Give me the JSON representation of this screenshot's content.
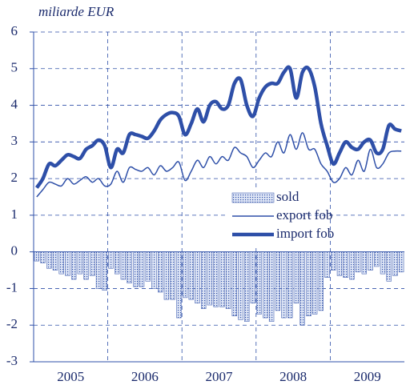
{
  "chart_data": {
    "type": "line_bar",
    "title": "miliarde EUR",
    "categories": [
      null,
      null,
      null,
      null,
      null,
      null,
      "2005",
      null,
      null,
      null,
      null,
      null,
      null,
      null,
      null,
      null,
      null,
      null,
      "2006",
      null,
      null,
      null,
      null,
      null,
      null,
      null,
      null,
      null,
      null,
      null,
      "2007",
      null,
      null,
      null,
      null,
      null,
      null,
      null,
      null,
      null,
      null,
      null,
      "2008",
      null,
      null,
      null,
      null,
      null,
      null,
      null,
      null,
      null,
      null,
      null,
      "2009",
      null,
      null,
      null,
      null,
      null
    ],
    "series": [
      {
        "name": "sold",
        "kind": "bar",
        "color": "#2e4fa8",
        "values": [
          -0.25,
          -0.3,
          -0.45,
          -0.5,
          -0.6,
          -0.65,
          -0.75,
          -0.6,
          -0.75,
          -0.65,
          -1.0,
          -1.05,
          -0.45,
          -0.6,
          -0.75,
          -0.85,
          -0.95,
          -0.95,
          -0.8,
          -1.0,
          -1.1,
          -1.3,
          -1.3,
          -1.8,
          -1.25,
          -1.3,
          -1.4,
          -1.55,
          -1.45,
          -1.5,
          -1.5,
          -1.55,
          -1.75,
          -1.85,
          -1.9,
          -1.4,
          -1.7,
          -1.8,
          -1.9,
          -1.6,
          -1.8,
          -1.8,
          -1.4,
          -2.0,
          -1.75,
          -1.7,
          -1.6,
          -0.7,
          -0.5,
          -0.65,
          -0.7,
          -0.75,
          -0.55,
          -0.6,
          -0.5,
          -0.4,
          -0.6,
          -0.8,
          -0.65,
          -0.55
        ]
      },
      {
        "name": "export fob",
        "kind": "line",
        "width": 1.5,
        "color": "#2e4fa8",
        "values": [
          1.5,
          1.7,
          1.9,
          1.85,
          1.8,
          2.0,
          1.85,
          1.95,
          2.05,
          1.9,
          2.0,
          1.8,
          1.85,
          2.2,
          1.9,
          2.3,
          2.25,
          2.2,
          2.3,
          2.1,
          2.35,
          2.2,
          2.3,
          2.45,
          1.95,
          2.2,
          2.5,
          2.3,
          2.6,
          2.4,
          2.6,
          2.5,
          2.85,
          2.7,
          2.6,
          2.3,
          2.5,
          2.7,
          2.6,
          3.0,
          2.7,
          3.2,
          2.8,
          3.25,
          2.8,
          2.8,
          2.4,
          2.2,
          1.9,
          2.0,
          2.3,
          2.1,
          2.5,
          2.2,
          2.8,
          2.3,
          2.4,
          2.7,
          2.75,
          2.75
        ]
      },
      {
        "name": "import fob",
        "kind": "line",
        "width": 4.5,
        "color": "#2e4fa8",
        "values": [
          1.75,
          2.0,
          2.4,
          2.35,
          2.5,
          2.65,
          2.6,
          2.55,
          2.8,
          2.9,
          3.05,
          2.9,
          2.3,
          2.8,
          2.7,
          3.2,
          3.2,
          3.15,
          3.1,
          3.3,
          3.6,
          3.75,
          3.8,
          3.7,
          3.2,
          3.5,
          3.9,
          3.55,
          4.0,
          4.1,
          3.9,
          4.0,
          4.6,
          4.7,
          4.0,
          3.7,
          4.2,
          4.5,
          4.6,
          4.6,
          4.9,
          5.0,
          4.2,
          4.9,
          5.0,
          4.5,
          3.5,
          2.9,
          2.4,
          2.7,
          3.0,
          2.85,
          2.8,
          3.0,
          3.05,
          2.7,
          2.8,
          3.45,
          3.35,
          3.3
        ]
      }
    ],
    "ylim": [
      -3,
      6
    ],
    "yticks": [
      -3,
      -2,
      -1,
      0,
      1,
      2,
      3,
      4,
      5,
      6
    ],
    "grid": true
  }
}
